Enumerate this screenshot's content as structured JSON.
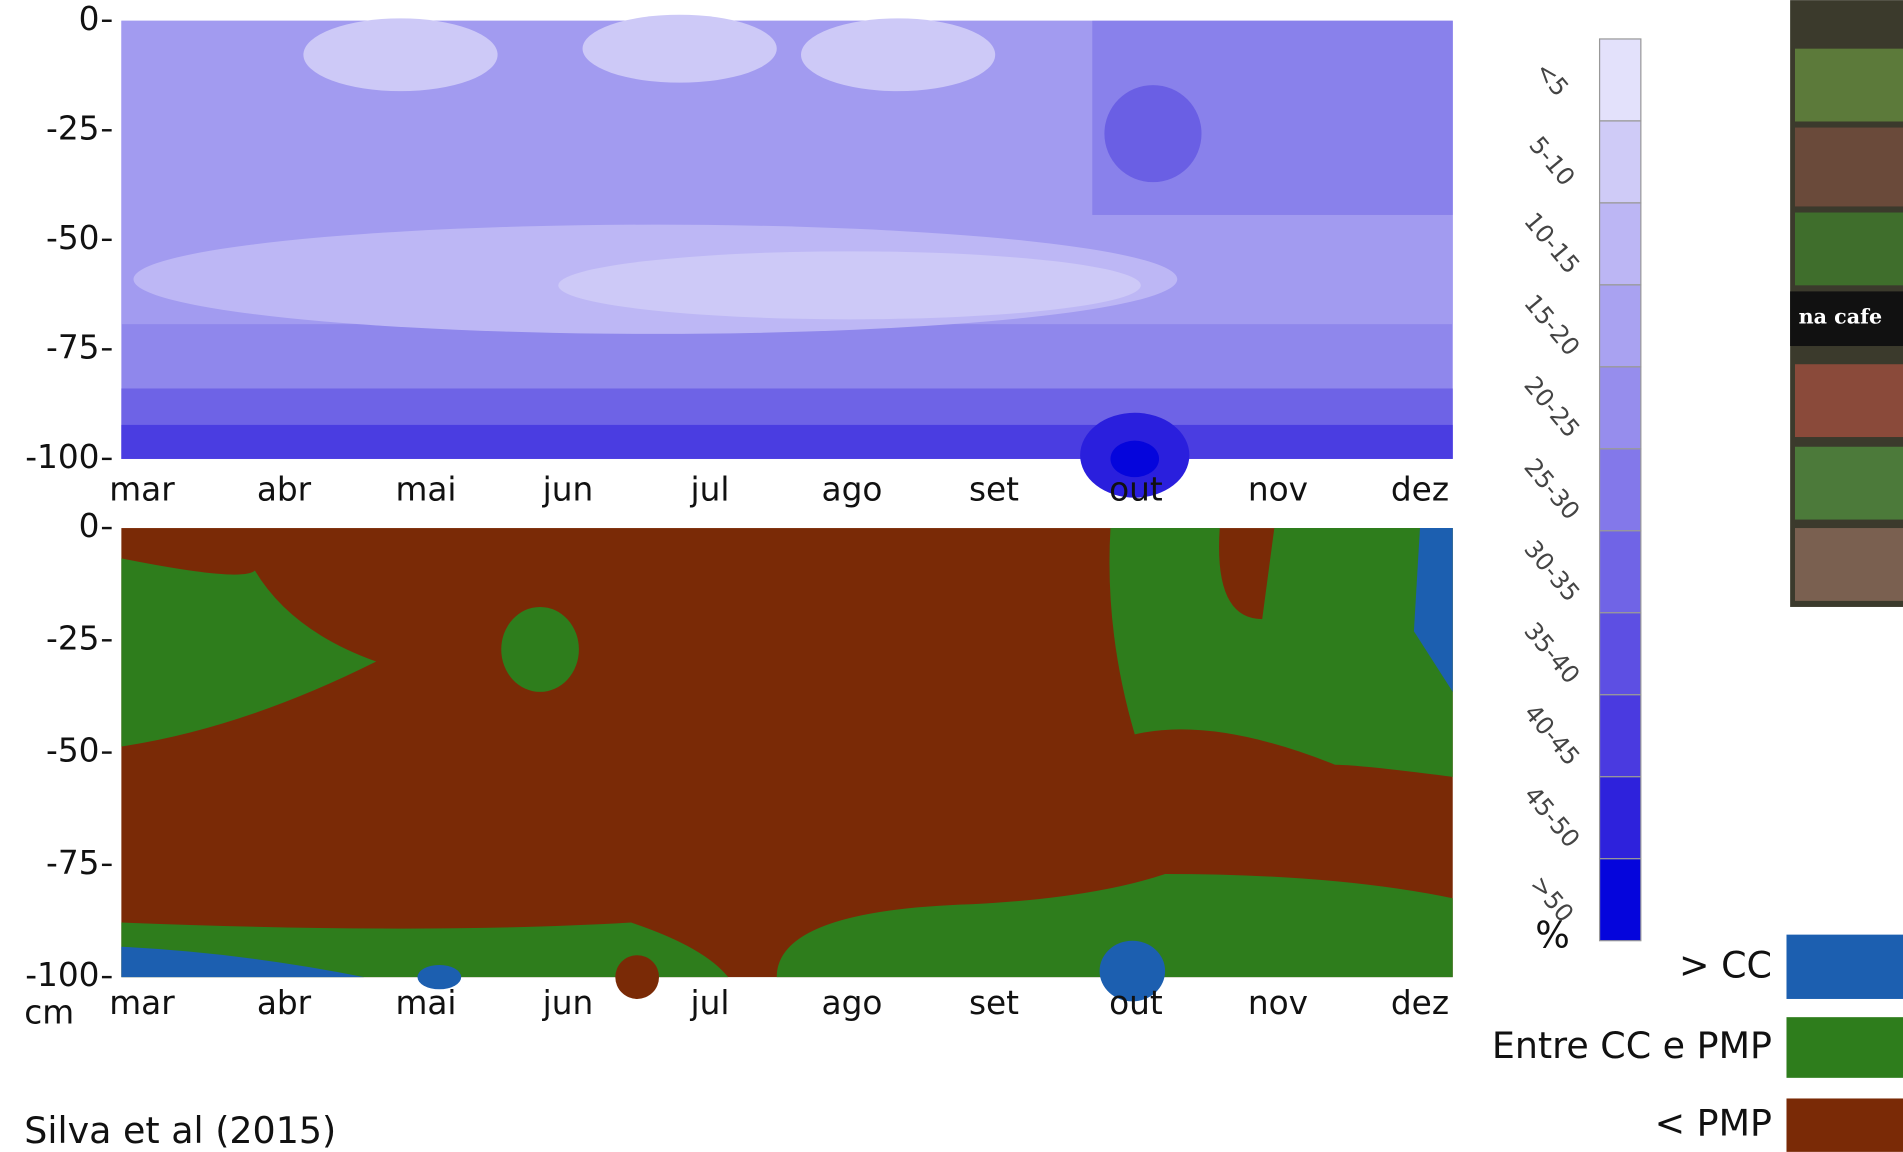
{
  "top_panel": {
    "yticks": [
      0,
      -25,
      -50,
      -75,
      -100
    ],
    "ylim": [
      0,
      -100
    ],
    "categories": [
      "mar",
      "abr",
      "mai",
      "jun",
      "jul",
      "ago",
      "set",
      "out",
      "nov",
      "dez"
    ]
  },
  "bottom_panel": {
    "yticks": [
      0,
      -25,
      -50,
      -75,
      -100
    ],
    "ylim": [
      0,
      -100
    ],
    "categories": [
      "mar",
      "abr",
      "mai",
      "jun",
      "jul",
      "ago",
      "set",
      "out",
      "nov",
      "dez"
    ]
  },
  "y_unit": "cm",
  "colorbar": {
    "unit": "%",
    "labels": [
      "<5",
      "5-10",
      "10-15",
      "15-20",
      "20-25",
      "25-30",
      "30-35",
      "35-40",
      "40-45",
      "45-50",
      ">50"
    ],
    "colors": [
      "#e3e1fb",
      "#cfcbf7",
      "#bcb6f4",
      "#a9a2f1",
      "#968ded",
      "#8378ea",
      "#7064e6",
      "#5d4fe3",
      "#4a3ae0",
      "#2e22dc",
      "#0505dc"
    ]
  },
  "legend": [
    {
      "label": "> CC",
      "color": "#1c5fb0"
    },
    {
      "label": "Entre CC e PMP",
      "color": "#2e7d1c"
    },
    {
      "label": "< PMP",
      "color": "#7a2a06"
    }
  ],
  "side_text": "na cafe",
  "source": "Silva et al (2015)"
}
